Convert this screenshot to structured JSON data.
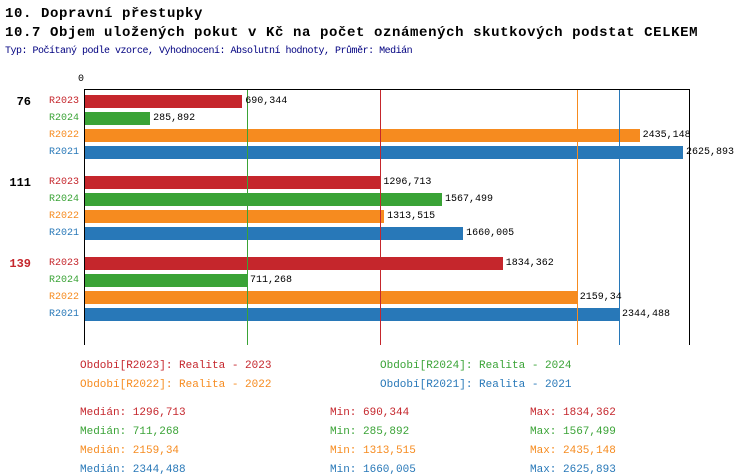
{
  "header": {
    "title1": "10. Dopravní přestupky",
    "title2": "10.7 Objem uložených pokut v Kč na počet oznámených skutkových podstat CELKEM",
    "meta": "Typ: Počítaný podle vzorce, Vyhodnocení: Absolutní hodnoty, Průměr: Medián"
  },
  "colors": {
    "series": {
      "R2023": "#c5262c",
      "R2024": "#3aa336",
      "R2022": "#f68b1f",
      "R2021": "#2878b8"
    },
    "axis": "#000000",
    "meta_text": "#000080",
    "value_text": "#000000",
    "group_label": "#000000",
    "group_highlight": "#c5262c"
  },
  "chart_data": {
    "type": "bar",
    "orientation": "horizontal",
    "title": "10.7 Objem uložených pokut v Kč na počet oznámených skutkových podstat CELKEM",
    "axis": {
      "zero_label": "0",
      "min": 0,
      "max": 2652,
      "unit": "Kč / počet"
    },
    "series_order": [
      "R2023",
      "R2024",
      "R2022",
      "R2021"
    ],
    "groups": [
      {
        "label": "76",
        "highlighted": false,
        "bars": [
          {
            "series": "R2023",
            "value": 690.344,
            "label": "690,344"
          },
          {
            "series": "R2024",
            "value": 285.892,
            "label": "285,892"
          },
          {
            "series": "R2022",
            "value": 2435.148,
            "label": "2435,148"
          },
          {
            "series": "R2021",
            "value": 2625.893,
            "label": "2625,893"
          }
        ]
      },
      {
        "label": "111",
        "highlighted": false,
        "bars": [
          {
            "series": "R2023",
            "value": 1296.713,
            "label": "1296,713"
          },
          {
            "series": "R2024",
            "value": 1567.499,
            "label": "1567,499"
          },
          {
            "series": "R2022",
            "value": 1313.515,
            "label": "1313,515"
          },
          {
            "series": "R2021",
            "value": 1660.005,
            "label": "1660,005"
          }
        ]
      },
      {
        "label": "139",
        "highlighted": true,
        "bars": [
          {
            "series": "R2023",
            "value": 1834.362,
            "label": "1834,362"
          },
          {
            "series": "R2024",
            "value": 711.268,
            "label": "711,268"
          },
          {
            "series": "R2022",
            "value": 2159.34,
            "label": "2159,34"
          },
          {
            "series": "R2021",
            "value": 2344.488,
            "label": "2344,488"
          }
        ]
      }
    ],
    "median_lines": [
      {
        "series": "R2023",
        "value": 1296.713
      },
      {
        "series": "R2024",
        "value": 711.268
      },
      {
        "series": "R2022",
        "value": 2159.34
      },
      {
        "series": "R2021",
        "value": 2344.488
      }
    ]
  },
  "legend": [
    {
      "series": "R2023",
      "label": "Období[R2023]: Realita - 2023"
    },
    {
      "series": "R2024",
      "label": "Období[R2024]: Realita - 2024"
    },
    {
      "series": "R2022",
      "label": "Období[R2022]: Realita - 2022"
    },
    {
      "series": "R2021",
      "label": "Období[R2021]: Realita - 2021"
    }
  ],
  "stats": [
    {
      "series": "R2023",
      "median": "Medián: 1296,713",
      "min": "Min: 690,344",
      "max": "Max: 1834,362"
    },
    {
      "series": "R2024",
      "median": "Medián: 711,268",
      "min": "Min: 285,892",
      "max": "Max: 1567,499"
    },
    {
      "series": "R2022",
      "median": "Medián: 2159,34",
      "min": "Min: 1313,515",
      "max": "Max: 2435,148"
    },
    {
      "series": "R2021",
      "median": "Medián: 2344,488",
      "min": "Min: 1660,005",
      "max": "Max: 2625,893"
    }
  ]
}
